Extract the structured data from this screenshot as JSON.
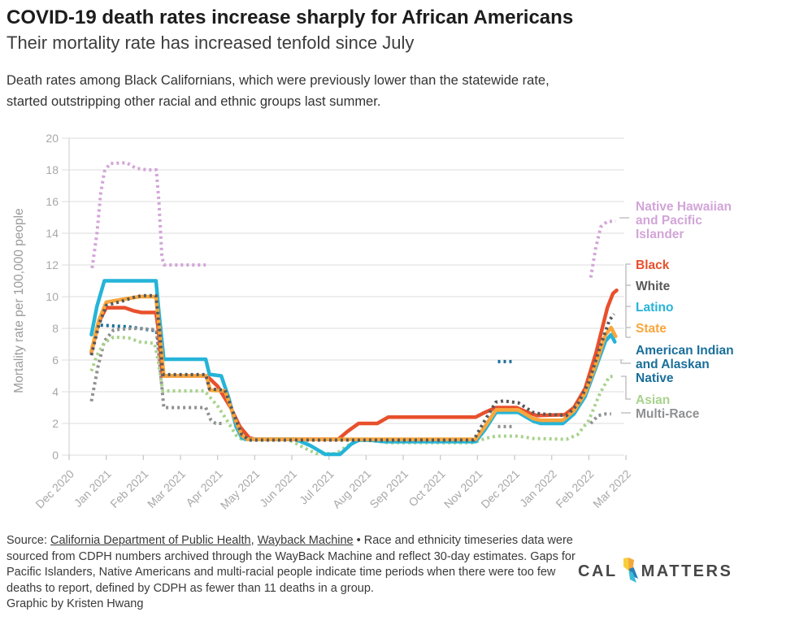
{
  "header": {
    "title": "COVID-19 death rates increase sharply for African Americans",
    "subtitle": "Their mortality rate has increased tenfold since July",
    "desc_line1": "Death rates among Black Californians, which were previously lower than the statewide rate,",
    "desc_line2": "started outstripping other racial and ethnic groups last summer."
  },
  "chart_data": {
    "type": "line",
    "ylabel": "Mortality rate per 100,000 people",
    "ylim": [
      0,
      20
    ],
    "yticks": [
      0,
      2,
      4,
      6,
      8,
      10,
      12,
      14,
      16,
      18,
      20
    ],
    "grid": true,
    "legend_position": "right",
    "x_labels": [
      "Dec 2020",
      "Jan 2021",
      "Feb 2021",
      "Mar 2021",
      "Apr 2021",
      "May 2021",
      "Jun 2021",
      "Jul 2021",
      "Aug 2021",
      "Sep 2021",
      "Oct 2021",
      "Nov 2021",
      "Dec 2021",
      "Jan 2022",
      "Feb 2022",
      "Mar 2022"
    ],
    "x_unit": "months since Dec 2020",
    "series": [
      {
        "name": "nhpi",
        "label": "Native Hawaiian and Pacific Islander",
        "label_lines": [
          "Native Hawaiian",
          "and Pacific",
          "Islander"
        ],
        "color": "#d2a5d8",
        "style": "dotted",
        "segments": [
          [
            [
              0.62,
              11.8
            ],
            [
              0.75,
              14.0
            ],
            [
              0.85,
              16.5
            ],
            [
              0.95,
              17.9
            ],
            [
              1.1,
              18.4
            ],
            [
              1.55,
              18.45
            ],
            [
              1.8,
              18.1
            ],
            [
              2.1,
              18.0
            ],
            [
              2.35,
              18.0
            ],
            [
              2.42,
              16.0
            ],
            [
              2.5,
              12.5
            ],
            [
              2.56,
              12.0
            ],
            [
              3.68,
              12.0
            ]
          ],
          [
            [
              14.05,
              11.2
            ],
            [
              14.18,
              13.0
            ],
            [
              14.32,
              14.4
            ],
            [
              14.5,
              14.75
            ],
            [
              14.72,
              14.75
            ]
          ]
        ]
      },
      {
        "name": "amindian",
        "label": "American Indian and Alaskan Native",
        "label_lines": [
          "American Indian",
          "and Alaskan",
          "Native"
        ],
        "color": "#1a6f9b",
        "style": "dotted",
        "segments": [
          [
            [
              0.85,
              8.2
            ],
            [
              1.6,
              8.1
            ],
            [
              1.9,
              8.0
            ],
            [
              2.15,
              7.9
            ],
            [
              2.35,
              7.85
            ],
            [
              2.45,
              6.5
            ]
          ],
          [
            [
              11.55,
              5.9
            ],
            [
              11.92,
              5.9
            ]
          ]
        ]
      },
      {
        "name": "multirace",
        "label": "Multi-Race",
        "label_lines": [
          "Multi-Race"
        ],
        "color": "#8f9092",
        "style": "dotted",
        "segments": [
          [
            [
              0.6,
              3.4
            ],
            [
              0.78,
              5.6
            ],
            [
              0.95,
              7.2
            ],
            [
              1.2,
              7.9
            ],
            [
              1.7,
              8.0
            ],
            [
              2.2,
              7.95
            ],
            [
              2.35,
              7.9
            ],
            [
              2.45,
              5.5
            ],
            [
              2.55,
              3.0
            ],
            [
              3.68,
              3.0
            ],
            [
              3.82,
              2.2
            ],
            [
              3.95,
              2.0
            ],
            [
              4.15,
              2.0
            ]
          ],
          [
            [
              11.55,
              1.8
            ],
            [
              11.95,
              1.8
            ]
          ],
          [
            [
              14.05,
              2.0
            ],
            [
              14.25,
              2.5
            ],
            [
              14.45,
              2.6
            ],
            [
              14.6,
              2.6
            ]
          ]
        ]
      },
      {
        "name": "asian",
        "label": "Asian",
        "label_lines": [
          "Asian"
        ],
        "color": "#a8d28c",
        "style": "dotted",
        "segments": [
          [
            [
              0.6,
              5.3
            ],
            [
              0.75,
              6.3
            ],
            [
              0.95,
              7.1
            ],
            [
              1.2,
              7.45
            ],
            [
              1.6,
              7.4
            ],
            [
              1.9,
              7.15
            ],
            [
              2.3,
              7.05
            ],
            [
              2.4,
              6.0
            ],
            [
              2.52,
              4.05
            ],
            [
              3.65,
              4.05
            ],
            [
              4.0,
              3.1
            ],
            [
              4.25,
              2.2
            ],
            [
              4.5,
              1.25
            ],
            [
              4.65,
              1.0
            ],
            [
              5.9,
              1.0
            ],
            [
              6.3,
              0.5
            ],
            [
              6.65,
              0.1
            ],
            [
              7.2,
              0.1
            ],
            [
              7.5,
              0.6
            ],
            [
              7.75,
              0.95
            ],
            [
              8.2,
              0.9
            ],
            [
              8.6,
              0.78
            ],
            [
              10.9,
              0.78
            ],
            [
              11.2,
              1.05
            ],
            [
              11.5,
              1.2
            ],
            [
              12.1,
              1.2
            ],
            [
              12.5,
              1.05
            ],
            [
              13.4,
              1.0
            ],
            [
              13.7,
              1.3
            ],
            [
              14.0,
              2.2
            ],
            [
              14.3,
              3.9
            ],
            [
              14.55,
              4.95
            ],
            [
              14.72,
              5.0
            ]
          ]
        ]
      },
      {
        "name": "black",
        "label": "Black",
        "label_lines": [
          "Black"
        ],
        "color": "#e8502c",
        "style": "solid",
        "segments": [
          [
            [
              0.6,
              6.5
            ],
            [
              0.8,
              8.4
            ],
            [
              1.0,
              9.3
            ],
            [
              1.5,
              9.3
            ],
            [
              1.75,
              9.1
            ],
            [
              1.95,
              9.0
            ],
            [
              2.34,
              9.0
            ],
            [
              2.4,
              8.0
            ],
            [
              2.52,
              5.0
            ],
            [
              3.7,
              5.0
            ],
            [
              3.8,
              4.8
            ],
            [
              4.0,
              4.35
            ],
            [
              4.35,
              3.0
            ],
            [
              4.6,
              1.8
            ],
            [
              4.85,
              1.1
            ],
            [
              5.0,
              1.0
            ],
            [
              7.25,
              1.0
            ],
            [
              7.5,
              1.5
            ],
            [
              7.8,
              2.0
            ],
            [
              8.3,
              2.0
            ],
            [
              8.6,
              2.4
            ],
            [
              10.95,
              2.4
            ],
            [
              11.2,
              2.7
            ],
            [
              11.5,
              3.0
            ],
            [
              12.05,
              3.0
            ],
            [
              12.35,
              2.7
            ],
            [
              12.6,
              2.5
            ],
            [
              13.35,
              2.55
            ],
            [
              13.6,
              3.0
            ],
            [
              13.9,
              4.2
            ],
            [
              14.2,
              6.5
            ],
            [
              14.5,
              9.3
            ],
            [
              14.65,
              10.2
            ],
            [
              14.75,
              10.4
            ]
          ]
        ]
      },
      {
        "name": "latino",
        "label": "Latino",
        "label_lines": [
          "Latino"
        ],
        "color": "#25b4d8",
        "style": "solid",
        "segments": [
          [
            [
              0.6,
              7.6
            ],
            [
              0.75,
              9.4
            ],
            [
              0.95,
              11.0
            ],
            [
              2.34,
              11.0
            ],
            [
              2.42,
              9.0
            ],
            [
              2.55,
              6.05
            ],
            [
              3.68,
              6.05
            ],
            [
              3.78,
              5.1
            ],
            [
              4.1,
              5.0
            ],
            [
              4.3,
              3.6
            ],
            [
              4.5,
              1.8
            ],
            [
              4.65,
              1.1
            ],
            [
              4.75,
              1.0
            ],
            [
              6.1,
              1.0
            ],
            [
              6.5,
              0.6
            ],
            [
              6.9,
              0.05
            ],
            [
              7.3,
              0.05
            ],
            [
              7.6,
              0.7
            ],
            [
              7.8,
              0.95
            ],
            [
              8.1,
              0.95
            ],
            [
              8.5,
              0.85
            ],
            [
              10.95,
              0.85
            ],
            [
              11.2,
              1.6
            ],
            [
              11.5,
              2.7
            ],
            [
              12.1,
              2.7
            ],
            [
              12.5,
              2.15
            ],
            [
              12.7,
              2.0
            ],
            [
              13.3,
              2.0
            ],
            [
              13.6,
              2.6
            ],
            [
              13.9,
              3.7
            ],
            [
              14.2,
              5.6
            ],
            [
              14.45,
              7.2
            ],
            [
              14.6,
              7.6
            ],
            [
              14.7,
              7.15
            ]
          ]
        ]
      },
      {
        "name": "state",
        "label": "State",
        "label_lines": [
          "State"
        ],
        "color": "#f8a63c",
        "style": "solid",
        "segments": [
          [
            [
              0.6,
              6.55
            ],
            [
              0.8,
              8.5
            ],
            [
              1.0,
              9.65
            ],
            [
              1.5,
              9.85
            ],
            [
              1.9,
              10.0
            ],
            [
              2.34,
              10.0
            ],
            [
              2.45,
              7.5
            ],
            [
              2.55,
              5.0
            ],
            [
              3.7,
              5.0
            ],
            [
              3.8,
              4.1
            ],
            [
              4.2,
              4.05
            ],
            [
              4.45,
              2.4
            ],
            [
              4.65,
              1.25
            ],
            [
              4.8,
              1.0
            ],
            [
              10.95,
              1.0
            ],
            [
              11.2,
              1.8
            ],
            [
              11.5,
              2.85
            ],
            [
              12.1,
              2.85
            ],
            [
              12.5,
              2.3
            ],
            [
              12.7,
              2.2
            ],
            [
              13.3,
              2.2
            ],
            [
              13.6,
              2.8
            ],
            [
              13.9,
              3.9
            ],
            [
              14.2,
              5.8
            ],
            [
              14.45,
              7.6
            ],
            [
              14.6,
              8.05
            ],
            [
              14.72,
              7.5
            ]
          ]
        ]
      },
      {
        "name": "white",
        "label": "White",
        "label_lines": [
          "White"
        ],
        "color": "#58585a",
        "style": "dotted",
        "segments": [
          [
            [
              0.6,
              6.3
            ],
            [
              0.8,
              8.2
            ],
            [
              1.0,
              9.45
            ],
            [
              1.4,
              9.7
            ],
            [
              1.8,
              10.0
            ],
            [
              2.0,
              10.06
            ],
            [
              2.34,
              10.06
            ],
            [
              2.45,
              7.55
            ],
            [
              2.52,
              5.08
            ],
            [
              3.68,
              5.08
            ],
            [
              3.78,
              4.18
            ],
            [
              4.2,
              4.1
            ],
            [
              4.45,
              2.5
            ],
            [
              4.65,
              1.3
            ],
            [
              4.85,
              0.95
            ],
            [
              10.9,
              0.95
            ],
            [
              11.15,
              2.0
            ],
            [
              11.5,
              3.35
            ],
            [
              11.7,
              3.42
            ],
            [
              12.1,
              3.3
            ],
            [
              12.5,
              2.7
            ],
            [
              12.7,
              2.6
            ],
            [
              13.4,
              2.5
            ],
            [
              13.7,
              3.2
            ],
            [
              14.0,
              4.6
            ],
            [
              14.3,
              6.8
            ],
            [
              14.55,
              8.5
            ],
            [
              14.68,
              8.9
            ]
          ]
        ]
      }
    ]
  },
  "footer": {
    "source_prefix": "Source: ",
    "link1": "California Department of Public Health",
    "sep": ", ",
    "link2": "Wayback Machine",
    "line1_rest": " • Race and ethnicity timeseries data were",
    "line2": "sourced from CDPH numbers archived through the WayBack Machine and reflect 30-day estimates. Gaps for",
    "line3": "Pacific Islanders, Native Americans and multi-racial people indicate time periods when there were too few",
    "line4": "deaths to report, defined by CDPH as fewer than 11 deaths in a group.",
    "credit": "Graphic by Kristen Hwang"
  },
  "logo": {
    "left": "CAL",
    "right": "MATTERS"
  }
}
